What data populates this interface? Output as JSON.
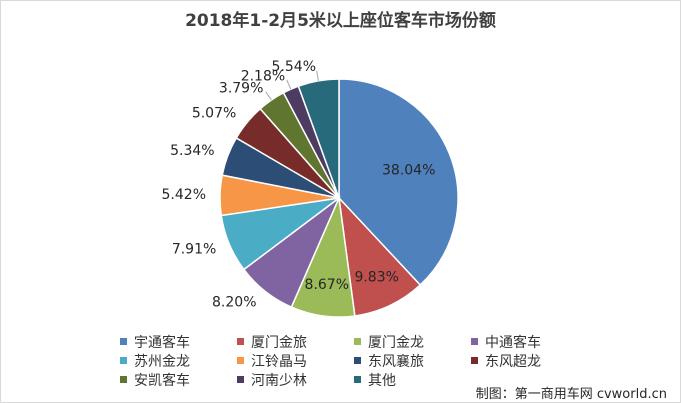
{
  "chart_data": {
    "type": "pie",
    "title": "2018年1-2月5米以上座位客车市场份额",
    "unit": "%",
    "legend_position": "bottom",
    "slices": [
      {
        "name": "宇通客车",
        "value": 38.04,
        "label": "38.04%",
        "color": "#4F81BD"
      },
      {
        "name": "厦门金旅",
        "value": 9.83,
        "label": "9.83%",
        "color": "#C0504D"
      },
      {
        "name": "厦门金龙",
        "value": 8.67,
        "label": "8.67%",
        "color": "#9BBB59"
      },
      {
        "name": "中通客车",
        "value": 8.2,
        "label": "8.20%",
        "color": "#8064A2"
      },
      {
        "name": "苏州金龙",
        "value": 7.91,
        "label": "7.91%",
        "color": "#4BACC6"
      },
      {
        "name": "江铃晶马",
        "value": 5.42,
        "label": "5.42%",
        "color": "#F79646"
      },
      {
        "name": "东风襄旅",
        "value": 5.34,
        "label": "5.34%",
        "color": "#2C4D75"
      },
      {
        "name": "东风超龙",
        "value": 5.07,
        "label": "5.07%",
        "color": "#772C2A"
      },
      {
        "name": "安凯客车",
        "value": 3.79,
        "label": "3.79%",
        "color": "#5F7530"
      },
      {
        "name": "河南少林",
        "value": 2.18,
        "label": "2.18%",
        "color": "#4D3B62"
      },
      {
        "name": "其他",
        "value": 5.54,
        "label": "5.54%",
        "color": "#276A7C"
      }
    ]
  },
  "credit": "制图：第一商用车网 cvworld.cn"
}
